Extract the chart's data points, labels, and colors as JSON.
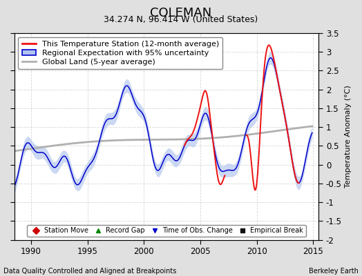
{
  "title": "COLEMAN",
  "subtitle": "34.274 N, 96.414 W (United States)",
  "ylabel": "Temperature Anomaly (°C)",
  "xlabel_left": "Data Quality Controlled and Aligned at Breakpoints",
  "xlabel_right": "Berkeley Earth",
  "xlim": [
    1988.5,
    2015.5
  ],
  "ylim": [
    -2.0,
    3.5
  ],
  "yticks": [
    -2,
    -1.5,
    -1,
    -0.5,
    0,
    0.5,
    1,
    1.5,
    2,
    2.5,
    3,
    3.5
  ],
  "xticks": [
    1990,
    1995,
    2000,
    2005,
    2010,
    2015
  ],
  "background_color": "#e0e0e0",
  "plot_bg_color": "#ffffff",
  "grid_color": "#cccccc",
  "title_fontsize": 13,
  "subtitle_fontsize": 9,
  "axis_fontsize": 8,
  "tick_fontsize": 8.5,
  "legend_fontsize": 8
}
